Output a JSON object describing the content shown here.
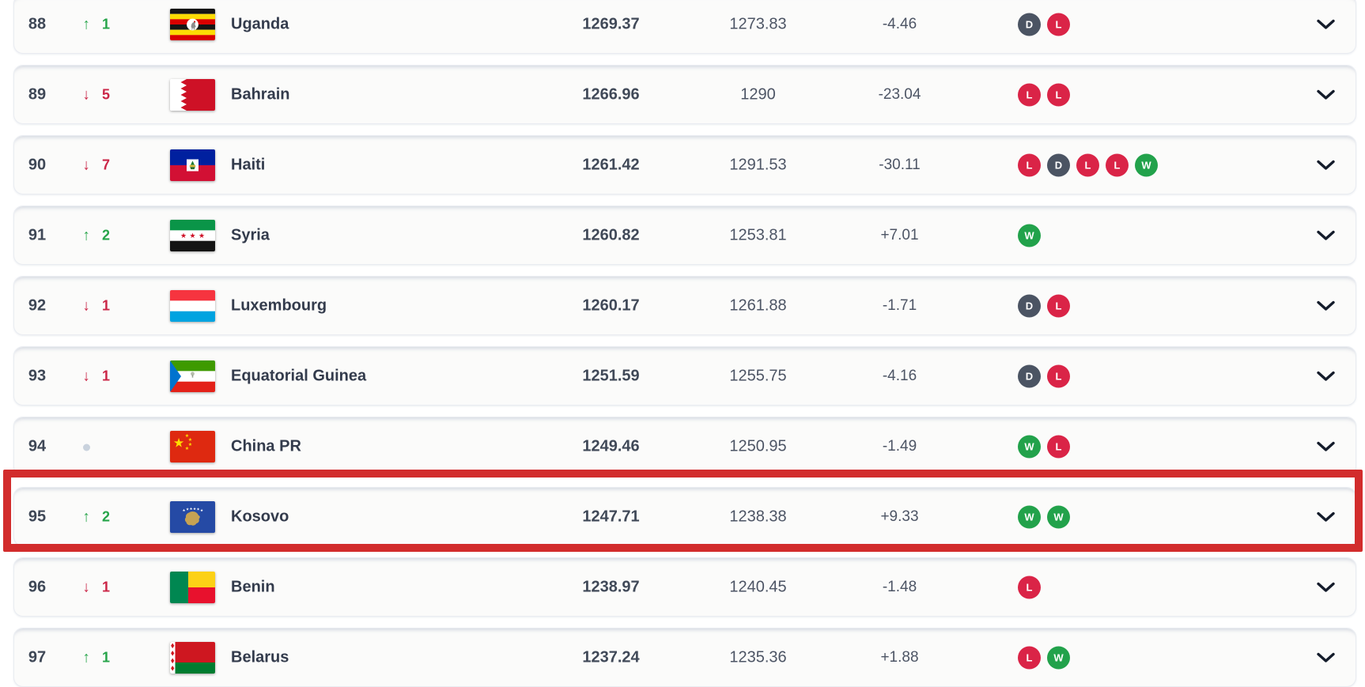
{
  "page": {
    "background": "#ffffff"
  },
  "colors": {
    "up": "#26a449",
    "down": "#cb2647",
    "win": "#22a24b",
    "loss": "#da2447",
    "draw": "#4b5463",
    "rank": "#3e4756",
    "highlight": "#d22c2c"
  },
  "icons": {
    "up_arrow": "↑",
    "down_arrow": "↓",
    "no_change": "dot",
    "expand": "chevron-down"
  },
  "rows": [
    {
      "rank": "88",
      "move": "up",
      "move_by": "1",
      "country": "Uganda",
      "flag": "uganda",
      "points": "1269.37",
      "previous_points": "1273.83",
      "points_change": "-4.46",
      "recent_form": [
        "D",
        "L"
      ],
      "highlighted": false
    },
    {
      "rank": "89",
      "move": "down",
      "move_by": "5",
      "country": "Bahrain",
      "flag": "bahrain",
      "points": "1266.96",
      "previous_points": "1290",
      "points_change": "-23.04",
      "recent_form": [
        "L",
        "L"
      ],
      "highlighted": false
    },
    {
      "rank": "90",
      "move": "down",
      "move_by": "7",
      "country": "Haiti",
      "flag": "haiti",
      "points": "1261.42",
      "previous_points": "1291.53",
      "points_change": "-30.11",
      "recent_form": [
        "L",
        "D",
        "L",
        "L",
        "W"
      ],
      "highlighted": false
    },
    {
      "rank": "91",
      "move": "up",
      "move_by": "2",
      "country": "Syria",
      "flag": "syria",
      "points": "1260.82",
      "previous_points": "1253.81",
      "points_change": "+7.01",
      "recent_form": [
        "W"
      ],
      "highlighted": false
    },
    {
      "rank": "92",
      "move": "down",
      "move_by": "1",
      "country": "Luxembourg",
      "flag": "luxembourg",
      "points": "1260.17",
      "previous_points": "1261.88",
      "points_change": "-1.71",
      "recent_form": [
        "D",
        "L"
      ],
      "highlighted": false
    },
    {
      "rank": "93",
      "move": "down",
      "move_by": "1",
      "country": "Equatorial Guinea",
      "flag": "equatorial-guinea",
      "points": "1251.59",
      "previous_points": "1255.75",
      "points_change": "-4.16",
      "recent_form": [
        "D",
        "L"
      ],
      "highlighted": false
    },
    {
      "rank": "94",
      "move": "none",
      "move_by": "",
      "country": "China PR",
      "flag": "china",
      "points": "1249.46",
      "previous_points": "1250.95",
      "points_change": "-1.49",
      "recent_form": [
        "W",
        "L"
      ],
      "highlighted": false
    },
    {
      "rank": "95",
      "move": "up",
      "move_by": "2",
      "country": "Kosovo",
      "flag": "kosovo",
      "points": "1247.71",
      "previous_points": "1238.38",
      "points_change": "+9.33",
      "recent_form": [
        "W",
        "W"
      ],
      "highlighted": true
    },
    {
      "rank": "96",
      "move": "down",
      "move_by": "1",
      "country": "Benin",
      "flag": "benin",
      "points": "1238.97",
      "previous_points": "1240.45",
      "points_change": "-1.48",
      "recent_form": [
        "L"
      ],
      "highlighted": false
    },
    {
      "rank": "97",
      "move": "up",
      "move_by": "1",
      "country": "Belarus",
      "flag": "belarus",
      "points": "1237.24",
      "previous_points": "1235.36",
      "points_change": "+1.88",
      "recent_form": [
        "L",
        "W"
      ],
      "highlighted": false
    }
  ]
}
